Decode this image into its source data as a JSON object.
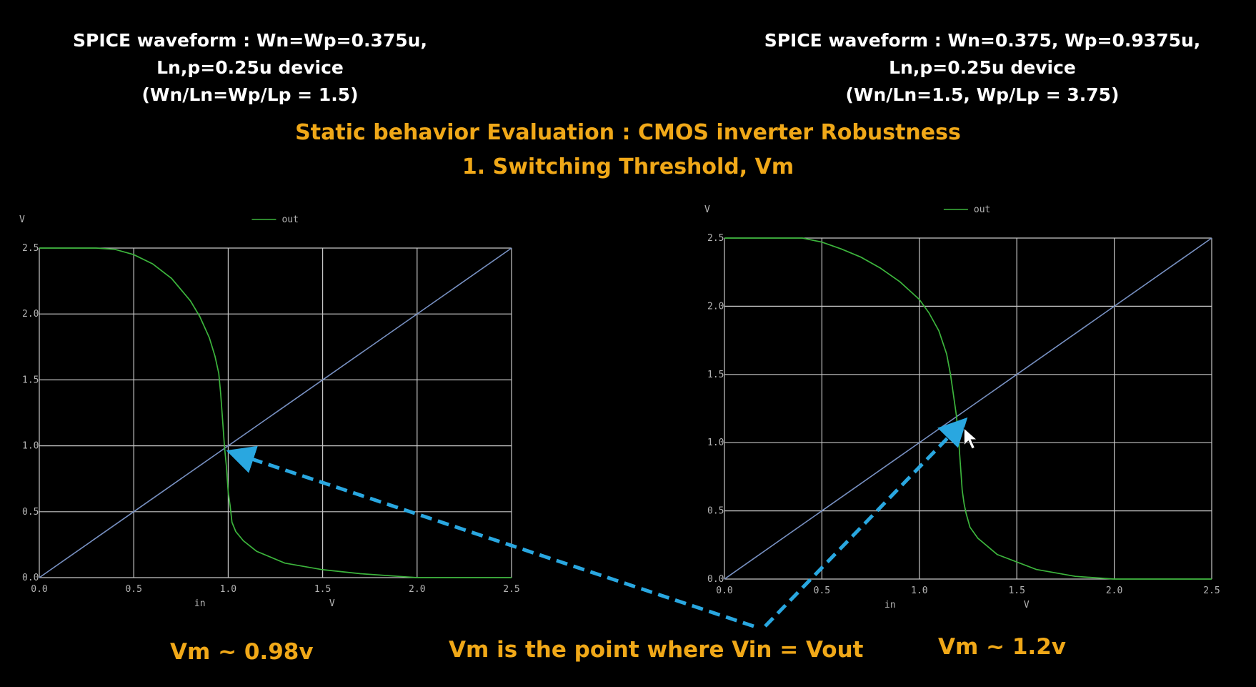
{
  "captions": {
    "left": {
      "line1": "SPICE waveform : Wn=Wp=0.375u,",
      "line2": "Ln,p=0.25u device",
      "line3": "(Wn/Ln=Wp/Lp = 1.5)"
    },
    "right": {
      "line1": "SPICE waveform : Wn=0.375, Wp=0.9375u,",
      "line2": "Ln,p=0.25u device",
      "line3": "(Wn/Ln=1.5, Wp/Lp = 3.75)"
    }
  },
  "heading": {
    "line1": "Static behavior Evaluation : CMOS inverter Robustness",
    "line2": "1. Switching Threshold, Vm"
  },
  "notes": {
    "left": "Vm ~ 0.98v",
    "center": "Vm is the point where Vin = Vout",
    "right": "Vm ~ 1.2v"
  },
  "colors": {
    "background": "#000000",
    "caption_text": "#ffffff",
    "heading_text": "#f0a818",
    "grid": "#c8c8c8",
    "out_curve": "#3cb43c",
    "diagonal": "#7891c3",
    "arrow": "#29a7e0"
  },
  "chart_data": [
    {
      "type": "line",
      "xlabel": "in",
      "xunit": "V",
      "yunit": "V",
      "xlim": [
        0,
        2.5
      ],
      "ylim": [
        0,
        2.5
      ],
      "xticks": [
        "0.0",
        "0.5",
        "1.0",
        "1.5",
        "2.0",
        "2.5"
      ],
      "yticks": [
        "0.0",
        "0.5",
        "1.0",
        "1.5",
        "2.0",
        "2.5"
      ],
      "grid": true,
      "legend": "top",
      "series": [
        {
          "name": "out",
          "color": "#3cb43c",
          "x": [
            0,
            0.3,
            0.4,
            0.5,
            0.6,
            0.7,
            0.8,
            0.85,
            0.9,
            0.93,
            0.95,
            0.96,
            0.97,
            0.98,
            0.99,
            1.0,
            1.01,
            1.02,
            1.04,
            1.08,
            1.15,
            1.3,
            1.5,
            1.7,
            1.9,
            2.0,
            2.1,
            2.5
          ],
          "y": [
            2.5,
            2.5,
            2.49,
            2.45,
            2.38,
            2.27,
            2.1,
            1.98,
            1.82,
            1.68,
            1.55,
            1.4,
            1.2,
            1.0,
            0.85,
            0.65,
            0.55,
            0.42,
            0.35,
            0.28,
            0.2,
            0.11,
            0.06,
            0.03,
            0.01,
            0.0,
            0.0,
            0.0
          ]
        }
      ],
      "diagonal": {
        "x": [
          0,
          2.5
        ],
        "y": [
          0,
          2.5
        ]
      },
      "vm": 0.98
    },
    {
      "type": "line",
      "xlabel": "in",
      "xunit": "V",
      "yunit": "V",
      "xlim": [
        0,
        2.5
      ],
      "ylim": [
        0,
        2.5
      ],
      "xticks": [
        "0.0",
        "0.5",
        "1.0",
        "1.5",
        "2.0",
        "2.5"
      ],
      "yticks": [
        "0.0",
        "0.5",
        "1.0",
        "1.5",
        "2.0",
        "2.5"
      ],
      "grid": true,
      "legend": "top",
      "series": [
        {
          "name": "out",
          "color": "#3cb43c",
          "x": [
            0,
            0.4,
            0.5,
            0.6,
            0.7,
            0.8,
            0.9,
            1.0,
            1.05,
            1.1,
            1.14,
            1.16,
            1.18,
            1.19,
            1.2,
            1.21,
            1.22,
            1.23,
            1.24,
            1.26,
            1.3,
            1.4,
            1.6,
            1.8,
            1.9,
            2.0,
            2.5
          ],
          "y": [
            2.5,
            2.5,
            2.47,
            2.42,
            2.36,
            2.28,
            2.18,
            2.05,
            1.95,
            1.82,
            1.65,
            1.5,
            1.3,
            1.2,
            1.05,
            0.85,
            0.65,
            0.55,
            0.48,
            0.38,
            0.3,
            0.18,
            0.07,
            0.02,
            0.01,
            0.0,
            0.0
          ]
        }
      ],
      "diagonal": {
        "x": [
          0,
          2.5
        ],
        "y": [
          0,
          2.5
        ]
      },
      "vm": 1.2
    }
  ]
}
